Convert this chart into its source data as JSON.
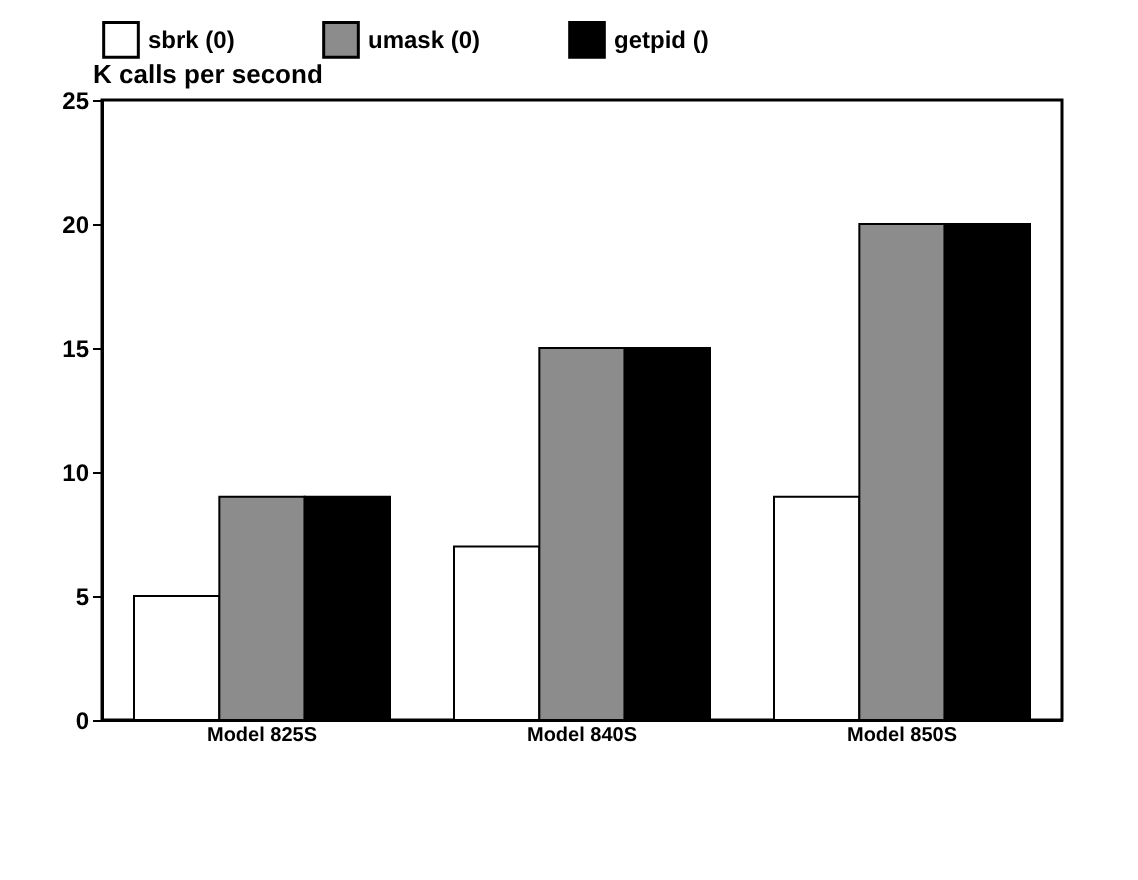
{
  "chart_data": {
    "type": "bar",
    "ylabel": "K calls per second",
    "categories": [
      "Model 825S",
      "Model 840S",
      "Model 850S"
    ],
    "series": [
      {
        "name": "sbrk (0)",
        "color": "#ffffff",
        "values": [
          5,
          7,
          9
        ]
      },
      {
        "name": "umask (0)",
        "color": "#8c8c8c",
        "values": [
          9,
          15,
          20
        ]
      },
      {
        "name": "getpid ()",
        "color": "#000000",
        "values": [
          9,
          15,
          20
        ]
      }
    ],
    "ylim": [
      0,
      25
    ],
    "yticks": [
      0,
      5,
      10,
      15,
      20,
      25
    ],
    "grid": false,
    "legend": "top"
  }
}
